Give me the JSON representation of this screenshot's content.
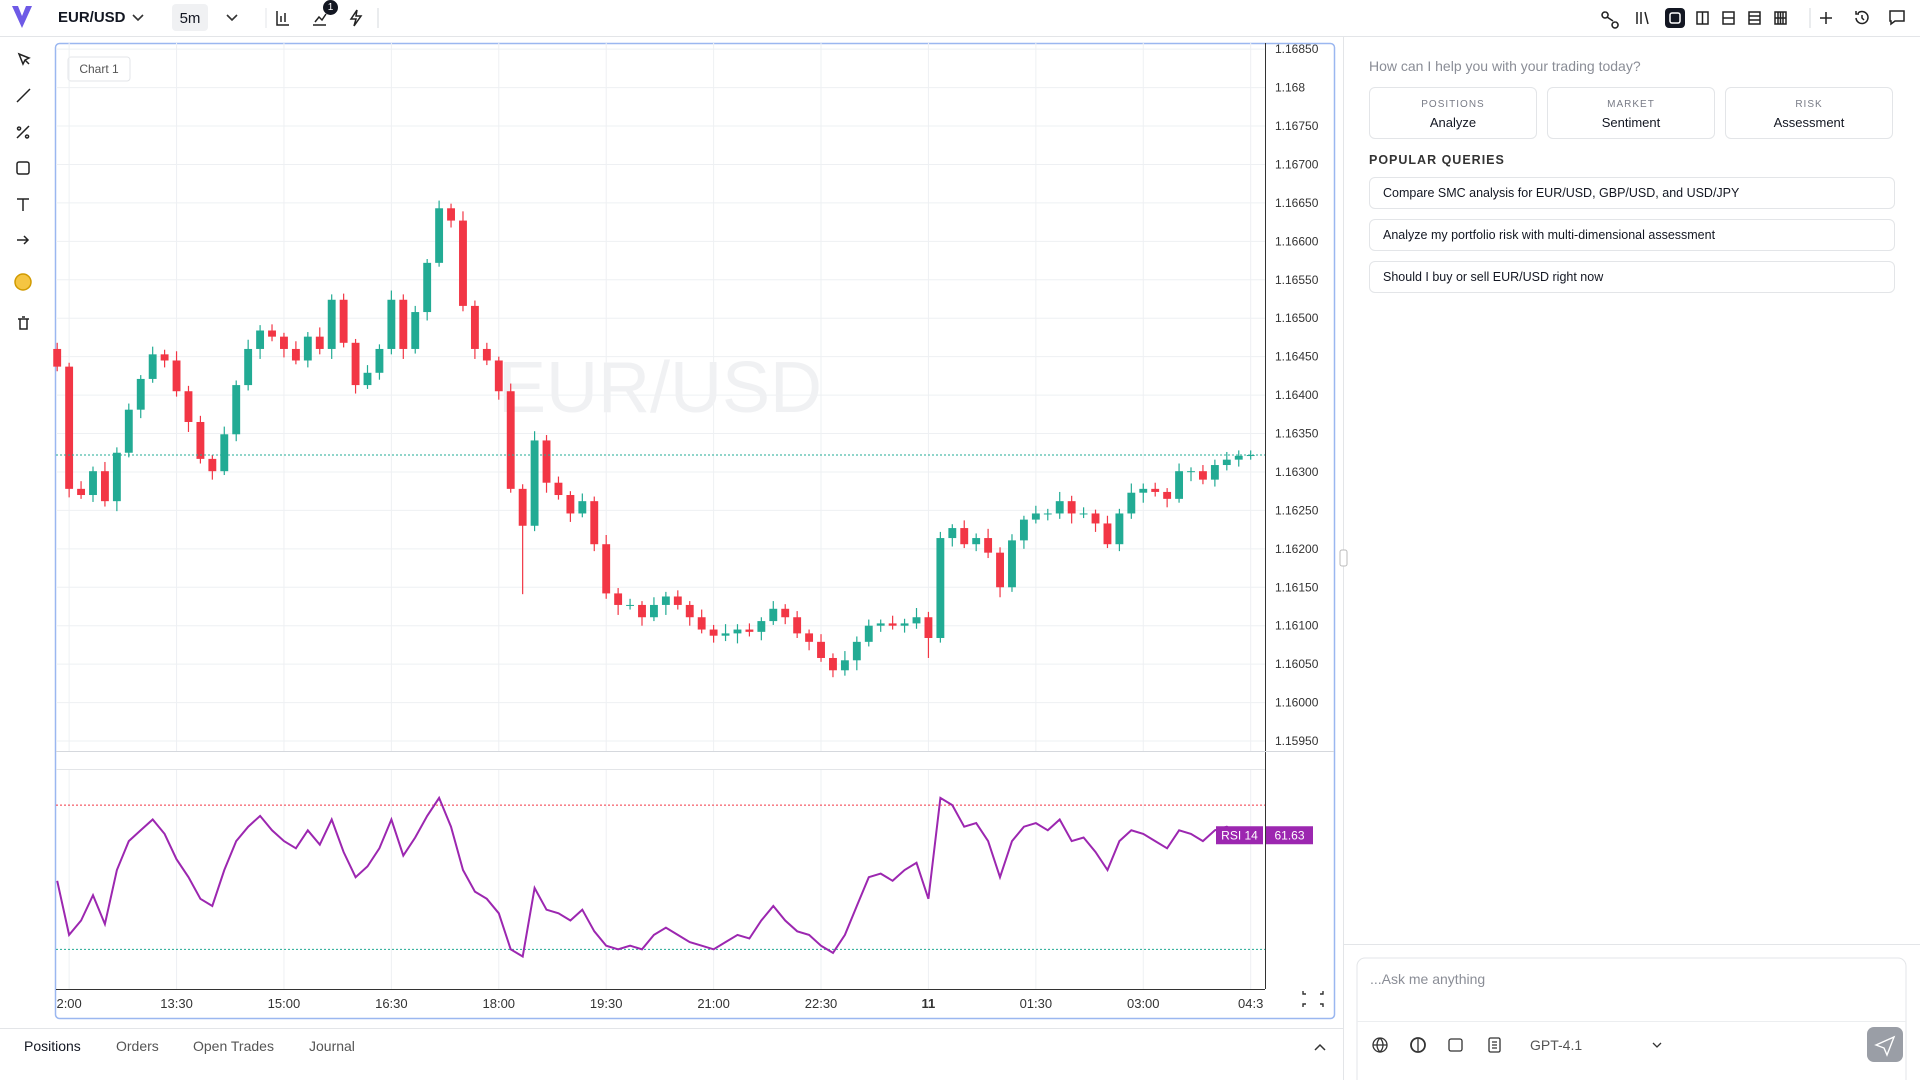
{
  "header": {
    "symbol": "EUR/USD",
    "interval": "5m",
    "indicator_badge": "1"
  },
  "chart_data": {
    "type": "candlestick",
    "label": "Chart 1",
    "watermark": "EUR/USD",
    "x": [
      710,
      720,
      730,
      740,
      750,
      760,
      770,
      780,
      790,
      800,
      810,
      820,
      830,
      840,
      850,
      860,
      870,
      880,
      890,
      900,
      910,
      920,
      930,
      940,
      950,
      960,
      970,
      980,
      990,
      1000,
      1010,
      1020,
      1030,
      1040,
      1050,
      1060,
      1070,
      1080,
      1090,
      1100,
      1110,
      1120,
      1130,
      1140,
      1150,
      1160,
      1170,
      1180,
      1190,
      1200,
      1210,
      1220,
      1230,
      1240,
      1250,
      1260,
      1270,
      1280,
      1290,
      1300,
      1310,
      1320,
      1330,
      1340,
      1350,
      1360,
      1370,
      1380,
      1390,
      1400,
      1410,
      1420,
      1430,
      1440,
      1450,
      1460,
      1470,
      1480,
      1490,
      1500,
      1510,
      1520,
      1530,
      1540,
      1550,
      1560,
      1570,
      1580,
      1590,
      1600,
      1610,
      1620,
      1630,
      1640,
      1650,
      1660,
      1670,
      1680,
      1690,
      1700,
      1710
    ],
    "xlim": [
      709,
      1722
    ],
    "xticks": [
      {
        "value": 720,
        "label": "2:00"
      },
      {
        "value": 810,
        "label": "13:30"
      },
      {
        "value": 900,
        "label": "15:00"
      },
      {
        "value": 990,
        "label": "16:30"
      },
      {
        "value": 1080,
        "label": "18:00"
      },
      {
        "value": 1170,
        "label": "19:30"
      },
      {
        "value": 1260,
        "label": "21:00"
      },
      {
        "value": 1350,
        "label": "22:30"
      },
      {
        "value": 1440,
        "label": "11",
        "bold": true
      },
      {
        "value": 1530,
        "label": "01:30"
      },
      {
        "value": 1620,
        "label": "03:00"
      },
      {
        "value": 1710,
        "label": "04:3"
      }
    ],
    "ylim": [
      1.15937,
      1.16858
    ],
    "yticks": [
      {
        "value": 1.1685,
        "label": "1.16850"
      },
      1.168,
      {
        "value": 1.1675,
        "label": "1.16750"
      },
      {
        "value": 1.167,
        "label": "1.16700"
      },
      {
        "value": 1.1665,
        "label": "1.16650"
      },
      {
        "value": 1.166,
        "label": "1.16600"
      },
      {
        "value": 1.1655,
        "label": "1.16550"
      },
      {
        "value": 1.165,
        "label": "1.16500"
      },
      {
        "value": 1.1645,
        "label": "1.16450"
      },
      {
        "value": 1.164,
        "label": "1.16400"
      },
      {
        "value": 1.1635,
        "label": "1.16350"
      },
      {
        "value": 1.163,
        "label": "1.16300"
      },
      {
        "value": 1.1625,
        "label": "1.16250"
      },
      {
        "value": 1.162,
        "label": "1.16200"
      },
      {
        "value": 1.1615,
        "label": "1.16150"
      },
      {
        "value": 1.161,
        "label": "1.16100"
      },
      {
        "value": 1.1605,
        "label": "1.16050"
      },
      {
        "value": 1.16,
        "label": "1.16000"
      },
      {
        "value": 1.1595,
        "label": "1.15950"
      }
    ],
    "grid": true,
    "up_color": "#22ab94",
    "down_color": "#f23645",
    "current_price_line": true,
    "candles": [
      [
        1.1646,
        1.16468,
        1.16431,
        1.16437
      ],
      [
        1.16437,
        1.16442,
        1.16267,
        1.16278
      ],
      [
        1.16278,
        1.16288,
        1.16265,
        1.1627
      ],
      [
        1.1627,
        1.16307,
        1.16261,
        1.16301
      ],
      [
        1.16301,
        1.16313,
        1.16255,
        1.16262
      ],
      [
        1.16262,
        1.16332,
        1.16249,
        1.16325
      ],
      [
        1.16325,
        1.16389,
        1.16319,
        1.16381
      ],
      [
        1.16381,
        1.16426,
        1.1637,
        1.16421
      ],
      [
        1.16421,
        1.16463,
        1.16416,
        1.16453
      ],
      [
        1.16453,
        1.16459,
        1.16436,
        1.16445
      ],
      [
        1.16445,
        1.16457,
        1.16398,
        1.16405
      ],
      [
        1.16405,
        1.16412,
        1.16352,
        1.16365
      ],
      [
        1.16365,
        1.16373,
        1.16311,
        1.16317
      ],
      [
        1.16317,
        1.16322,
        1.1629,
        1.16301
      ],
      [
        1.16301,
        1.16359,
        1.16296,
        1.16349
      ],
      [
        1.16349,
        1.16419,
        1.1634,
        1.16413
      ],
      [
        1.16413,
        1.16472,
        1.16406,
        1.1646
      ],
      [
        1.1646,
        1.16491,
        1.16447,
        1.16484
      ],
      [
        1.16484,
        1.16492,
        1.1647,
        1.16476
      ],
      [
        1.16476,
        1.16481,
        1.16449,
        1.1646
      ],
      [
        1.1646,
        1.1647,
        1.1644,
        1.16445
      ],
      [
        1.16445,
        1.16482,
        1.16436,
        1.16476
      ],
      [
        1.16476,
        1.16488,
        1.16453,
        1.1646
      ],
      [
        1.1646,
        1.16531,
        1.16447,
        1.16524
      ],
      [
        1.16524,
        1.16532,
        1.16462,
        1.16468
      ],
      [
        1.16468,
        1.16473,
        1.16402,
        1.16413
      ],
      [
        1.16413,
        1.16439,
        1.16408,
        1.16429
      ],
      [
        1.16429,
        1.16466,
        1.1642,
        1.1646
      ],
      [
        1.1646,
        1.16536,
        1.16453,
        1.16524
      ],
      [
        1.16524,
        1.16531,
        1.16447,
        1.1646
      ],
      [
        1.1646,
        1.16516,
        1.16454,
        1.16508
      ],
      [
        1.16508,
        1.16577,
        1.16497,
        1.16572
      ],
      [
        1.16572,
        1.16653,
        1.16567,
        1.16643
      ],
      [
        1.16643,
        1.16649,
        1.16618,
        1.16627
      ],
      [
        1.16627,
        1.16639,
        1.16509,
        1.16516
      ],
      [
        1.16516,
        1.16523,
        1.16447,
        1.1646
      ],
      [
        1.1646,
        1.16468,
        1.16439,
        1.16445
      ],
      [
        1.16445,
        1.1645,
        1.16394,
        1.16405
      ],
      [
        1.16405,
        1.16415,
        1.16273,
        1.16278
      ],
      [
        1.16278,
        1.16284,
        1.16141,
        1.1623
      ],
      [
        1.1623,
        1.16353,
        1.16223,
        1.16341
      ],
      [
        1.16341,
        1.16348,
        1.16273,
        1.16286
      ],
      [
        1.16286,
        1.16294,
        1.16264,
        1.1627
      ],
      [
        1.1627,
        1.16275,
        1.16235,
        1.16246
      ],
      [
        1.16246,
        1.16272,
        1.16241,
        1.16262
      ],
      [
        1.16262,
        1.16268,
        1.16197,
        1.16206
      ],
      [
        1.16206,
        1.16218,
        1.16135,
        1.16142
      ],
      [
        1.16142,
        1.16149,
        1.16114,
        1.16127
      ],
      [
        1.16127,
        1.16135,
        1.16121,
        1.16127
      ],
      [
        1.16127,
        1.16132,
        1.161,
        1.16111
      ],
      [
        1.16111,
        1.16137,
        1.16106,
        1.16127
      ],
      [
        1.16127,
        1.16144,
        1.16114,
        1.16138
      ],
      [
        1.16138,
        1.16146,
        1.16121,
        1.16127
      ],
      [
        1.16127,
        1.16132,
        1.161,
        1.16111
      ],
      [
        1.16111,
        1.16121,
        1.1609,
        1.16095
      ],
      [
        1.16095,
        1.16101,
        1.16078,
        1.16087
      ],
      [
        1.16087,
        1.16102,
        1.1608,
        1.1609
      ],
      [
        1.1609,
        1.16102,
        1.16077,
        1.16095
      ],
      [
        1.16095,
        1.16103,
        1.16086,
        1.16092
      ],
      [
        1.16092,
        1.16111,
        1.16081,
        1.16106
      ],
      [
        1.16106,
        1.16132,
        1.16101,
        1.16122
      ],
      [
        1.16122,
        1.16128,
        1.16102,
        1.16111
      ],
      [
        1.16111,
        1.16119,
        1.16084,
        1.1609
      ],
      [
        1.1609,
        1.16095,
        1.16068,
        1.16079
      ],
      [
        1.16079,
        1.16089,
        1.16053,
        1.16058
      ],
      [
        1.16058,
        1.16064,
        1.16033,
        1.16042
      ],
      [
        1.16042,
        1.16067,
        1.16035,
        1.16055
      ],
      [
        1.16055,
        1.16086,
        1.16042,
        1.16079
      ],
      [
        1.16079,
        1.16108,
        1.16073,
        1.161
      ],
      [
        1.161,
        1.16108,
        1.16092,
        1.16103
      ],
      [
        1.16103,
        1.16113,
        1.16095,
        1.161
      ],
      [
        1.161,
        1.16109,
        1.16091,
        1.16103
      ],
      [
        1.16103,
        1.16123,
        1.16096,
        1.16111
      ],
      [
        1.16111,
        1.16118,
        1.16058,
        1.16084
      ],
      [
        1.16084,
        1.16222,
        1.16078,
        1.16214
      ],
      [
        1.16214,
        1.16232,
        1.16203,
        1.16227
      ],
      [
        1.16227,
        1.16237,
        1.16201,
        1.16206
      ],
      [
        1.16206,
        1.1622,
        1.16197,
        1.16214
      ],
      [
        1.16214,
        1.16226,
        1.16188,
        1.16195
      ],
      [
        1.16195,
        1.16202,
        1.16137,
        1.1615
      ],
      [
        1.1615,
        1.16219,
        1.16144,
        1.16211
      ],
      [
        1.16211,
        1.16243,
        1.162,
        1.16238
      ],
      [
        1.16238,
        1.16256,
        1.16233,
        1.16246
      ],
      [
        1.16246,
        1.16252,
        1.16237,
        1.16246
      ],
      [
        1.16246,
        1.16274,
        1.16239,
        1.16262
      ],
      [
        1.16262,
        1.16269,
        1.16233,
        1.16246
      ],
      [
        1.16246,
        1.16254,
        1.1624,
        1.16246
      ],
      [
        1.16246,
        1.16251,
        1.16222,
        1.16233
      ],
      [
        1.16233,
        1.16243,
        1.16201,
        1.16206
      ],
      [
        1.16206,
        1.16252,
        1.16197,
        1.16246
      ],
      [
        1.16246,
        1.16285,
        1.16239,
        1.16273
      ],
      [
        1.16273,
        1.16285,
        1.1626,
        1.16278
      ],
      [
        1.16278,
        1.16286,
        1.16268,
        1.16274
      ],
      [
        1.16274,
        1.16279,
        1.16254,
        1.16265
      ],
      [
        1.16265,
        1.16311,
        1.1626,
        1.16301
      ],
      [
        1.16301,
        1.16306,
        1.16288,
        1.16301
      ],
      [
        1.16301,
        1.16309,
        1.16284,
        1.1629
      ],
      [
        1.1629,
        1.16316,
        1.16281,
        1.16309
      ],
      [
        1.16309,
        1.16326,
        1.16302,
        1.16316
      ],
      [
        1.16316,
        1.16328,
        1.16307,
        1.16321
      ],
      [
        1.16321,
        1.16328,
        1.16316,
        1.16322
      ]
    ],
    "indicator": {
      "type": "line",
      "name": "RSI 14",
      "color": "#9c27b0",
      "ylim": [
        19,
        80
      ],
      "levels": [
        {
          "value": 70,
          "color": "#f23645"
        },
        {
          "value": 30,
          "color": "#22ab94"
        }
      ],
      "values": [
        49,
        34,
        38,
        45,
        37,
        52,
        60,
        63,
        66,
        62,
        55,
        50,
        44,
        42,
        52,
        60,
        64,
        67,
        63,
        60,
        58,
        63,
        59,
        66,
        57,
        50,
        53,
        58,
        66,
        56,
        61,
        67,
        72,
        64,
        52,
        46,
        44,
        40,
        30,
        28,
        47,
        41,
        40,
        38,
        41,
        35,
        31,
        30,
        31,
        30,
        34,
        36,
        34,
        32,
        31,
        30,
        32,
        34,
        33,
        38,
        42,
        38,
        35,
        34,
        31,
        29,
        34,
        42,
        50,
        51,
        49,
        52,
        54,
        44,
        72,
        70,
        64,
        65,
        60,
        50,
        60,
        64,
        65,
        63,
        66,
        60,
        61,
        57,
        52,
        60,
        63,
        62,
        60,
        58,
        63,
        62,
        60,
        63,
        64,
        62,
        61.63
      ]
    }
  },
  "tabs": [
    "Positions",
    "Orders",
    "Open Trades",
    "Journal"
  ],
  "assistant": {
    "prompt": "How can I help you with your trading today?",
    "cards": [
      {
        "kicker": "POSITIONS",
        "title": "Analyze"
      },
      {
        "kicker": "MARKET",
        "title": "Sentiment"
      },
      {
        "kicker": "RISK",
        "title": "Assessment"
      }
    ],
    "queries_title": "POPULAR QUERIES",
    "queries": [
      "Compare SMC analysis for EUR/USD, GBP/USD, and USD/JPY",
      "Analyze my portfolio risk with multi-dimensional assessment",
      "Should I buy or sell EUR/USD right now"
    ],
    "placeholder": "...Ask me anything",
    "model": "GPT-4.1"
  }
}
